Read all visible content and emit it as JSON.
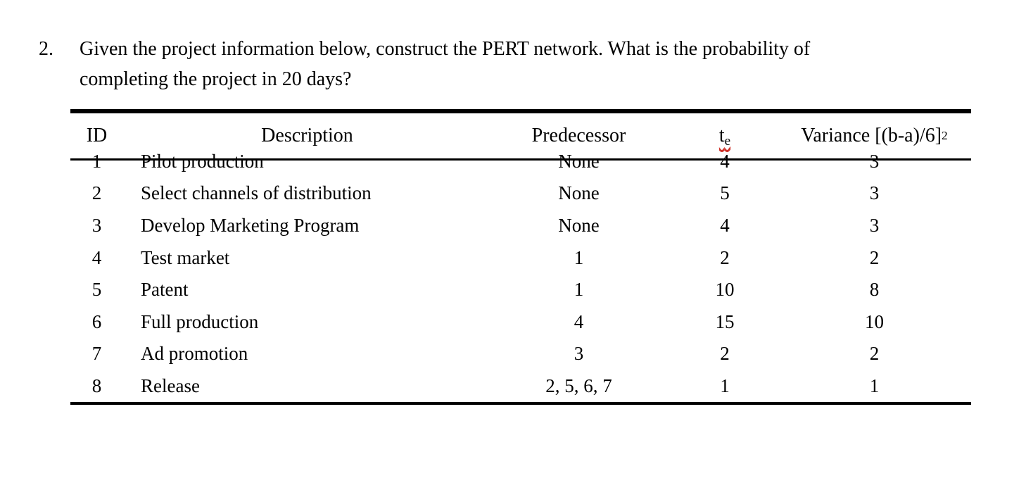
{
  "theme": {
    "page-bg": "#ffffff",
    "text": "#000000",
    "squiggle": "#d0342c"
  },
  "question": {
    "number": "2.",
    "lines": [
      "Given the project information below, construct the PERT network. What is the probability of",
      "completing the project in 20 days?"
    ]
  },
  "table": {
    "headers": {
      "id": "ID",
      "description": "Description",
      "predecessor": "Predecessor",
      "te_symbol": "t",
      "te_subscript": "e",
      "variance_base": "Variance [(b-a)/6]",
      "variance_sup": "2"
    },
    "rows": [
      {
        "id": "1",
        "description": "Pilot production",
        "predecessor": "None",
        "te": "4",
        "variance": "3"
      },
      {
        "id": "2",
        "description": "Select channels of distribution",
        "predecessor": "None",
        "te": "5",
        "variance": "3"
      },
      {
        "id": "3",
        "description": "Develop Marketing Program",
        "predecessor": "None",
        "te": "4",
        "variance": "3"
      },
      {
        "id": "4",
        "description": "Test market",
        "predecessor": "1",
        "te": "2",
        "variance": "2"
      },
      {
        "id": "5",
        "description": "Patent",
        "predecessor": "1",
        "te": "10",
        "variance": "8"
      },
      {
        "id": "6",
        "description": "Full production",
        "predecessor": "4",
        "te": "15",
        "variance": "10"
      },
      {
        "id": "7",
        "description": "Ad promotion",
        "predecessor": "3",
        "te": "2",
        "variance": "2"
      },
      {
        "id": "8",
        "description": "Release",
        "predecessor": "2, 5, 6, 7",
        "te": "1",
        "variance": "1"
      }
    ]
  }
}
